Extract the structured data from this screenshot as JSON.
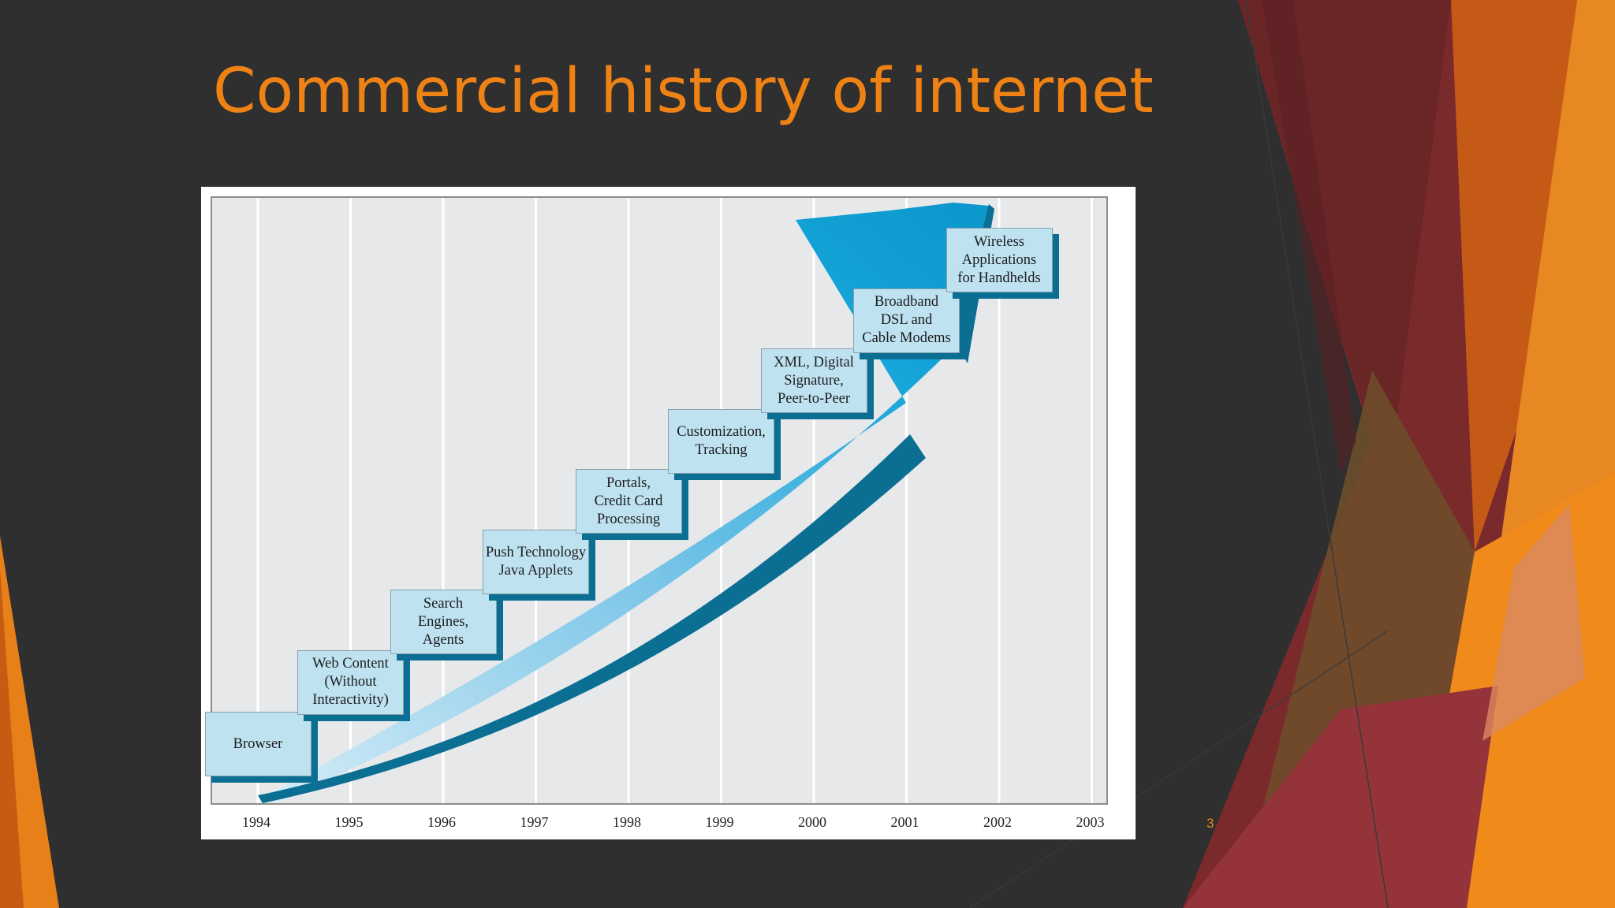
{
  "slide": {
    "title": "Commercial history of internet",
    "number": "3",
    "colors": {
      "background": "#2f2f30",
      "title": "#ef8214",
      "accent_orange": "#ef8214",
      "accent_red": "#8e2b30",
      "arrow_blue": "#0a9fd3"
    }
  },
  "diagram": {
    "years": [
      "1994",
      "1995",
      "1996",
      "1997",
      "1998",
      "1999",
      "2000",
      "2001",
      "2002",
      "2003"
    ],
    "milestones": [
      {
        "year": "1994",
        "label": "Browser"
      },
      {
        "year": "1995",
        "label": "Web Content\n(Without\nInteractivity)"
      },
      {
        "year": "1996",
        "label": "Search\nEngines,\nAgents"
      },
      {
        "year": "1997",
        "label": "Push Technology\nJava Applets"
      },
      {
        "year": "1998",
        "label": "Portals,\nCredit Card\nProcessing"
      },
      {
        "year": "1999",
        "label": "Customization,\nTracking"
      },
      {
        "year": "2000",
        "label": "XML, Digital\nSignature,\nPeer-to-Peer"
      },
      {
        "year": "2001",
        "label": "Broadband\nDSL and\nCable Modems"
      },
      {
        "year": "2002",
        "label": "Wireless\nApplications\nfor Handhelds"
      }
    ]
  }
}
